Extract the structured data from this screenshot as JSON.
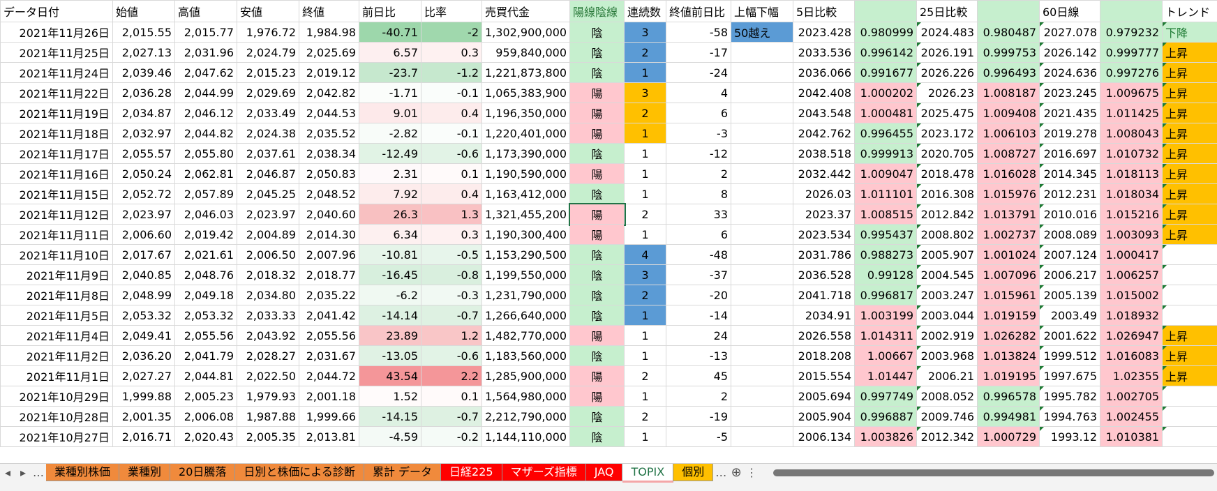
{
  "table": {
    "header": [
      "データ日付",
      "始値",
      "高値",
      "安値",
      "終値",
      "前日比",
      "比率",
      "売買代金",
      "陽線陰線",
      "連続数",
      "終値前日比",
      "上幅下幅",
      "5日比較",
      null,
      "25日比較",
      null,
      "60日線",
      null,
      "トレンド"
    ],
    "rows": [
      [
        "2021年11月26日",
        "2,015.55",
        "2,015.77",
        "1,976.72",
        "1,984.98",
        "-40.71",
        "-2",
        "1,302,900,000",
        "陰",
        "3",
        "-58",
        "50越え",
        "2023.428",
        "0.980999",
        "2024.483",
        "0.980487",
        "2027.078",
        "0.979232",
        "下降"
      ],
      [
        "2021年11月25日",
        "2,027.13",
        "2,031.96",
        "2,024.79",
        "2,025.69",
        "6.57",
        "0.3",
        "959,840,000",
        "陰",
        "2",
        "-17",
        null,
        "2033.536",
        "0.996142",
        "2026.191",
        "0.999753",
        "2026.142",
        "0.999777",
        "上昇"
      ],
      [
        "2021年11月24日",
        "2,039.46",
        "2,047.62",
        "2,015.23",
        "2,019.12",
        "-23.7",
        "-1.2",
        "1,221,873,800",
        "陰",
        "1",
        "-24",
        null,
        "2036.066",
        "0.991677",
        "2026.226",
        "0.996493",
        "2024.636",
        "0.997276",
        "上昇"
      ],
      [
        "2021年11月22日",
        "2,036.28",
        "2,044.99",
        "2,029.69",
        "2,042.82",
        "-1.71",
        "-0.1",
        "1,065,383,900",
        "陽",
        "3",
        "4",
        null,
        "2042.408",
        "1.000202",
        "2026.23",
        "1.008187",
        "2023.245",
        "1.009675",
        "上昇"
      ],
      [
        "2021年11月19日",
        "2,034.87",
        "2,046.12",
        "2,033.49",
        "2,044.53",
        "9.01",
        "0.4",
        "1,196,350,000",
        "陽",
        "2",
        "6",
        null,
        "2043.548",
        "1.000481",
        "2025.475",
        "1.009408",
        "2021.435",
        "1.011425",
        "上昇"
      ],
      [
        "2021年11月18日",
        "2,032.97",
        "2,044.82",
        "2,024.38",
        "2,035.52",
        "-2.82",
        "-0.1",
        "1,220,401,000",
        "陽",
        "1",
        "-3",
        null,
        "2042.762",
        "0.996455",
        "2023.172",
        "1.006103",
        "2019.278",
        "1.008043",
        "上昇"
      ],
      [
        "2021年11月17日",
        "2,055.57",
        "2,055.80",
        "2,037.61",
        "2,038.34",
        "-12.49",
        "-0.6",
        "1,173,390,000",
        "陰",
        "1",
        "-12",
        null,
        "2038.518",
        "0.999913",
        "2020.705",
        "1.008727",
        "2016.697",
        "1.010732",
        "上昇"
      ],
      [
        "2021年11月16日",
        "2,050.24",
        "2,062.81",
        "2,046.87",
        "2,050.83",
        "2.31",
        "0.1",
        "1,190,590,000",
        "陽",
        "1",
        "2",
        null,
        "2032.442",
        "1.009047",
        "2018.478",
        "1.016028",
        "2014.345",
        "1.018113",
        "上昇"
      ],
      [
        "2021年11月15日",
        "2,052.72",
        "2,057.89",
        "2,045.25",
        "2,048.52",
        "7.92",
        "0.4",
        "1,163,412,000",
        "陰",
        "1",
        "8",
        null,
        "2026.03",
        "1.011101",
        "2016.308",
        "1.015976",
        "2012.231",
        "1.018034",
        "上昇"
      ],
      [
        "2021年11月12日",
        "2,023.97",
        "2,046.03",
        "2,023.97",
        "2,040.60",
        "26.3",
        "1.3",
        "1,321,455,200",
        "陽",
        "2",
        "33",
        null,
        "2023.37",
        "1.008515",
        "2012.842",
        "1.013791",
        "2010.016",
        "1.015216",
        "上昇"
      ],
      [
        "2021年11月11日",
        "2,006.60",
        "2,019.42",
        "2,004.89",
        "2,014.30",
        "6.34",
        "0.3",
        "1,190,300,400",
        "陽",
        "1",
        "6",
        null,
        "2023.534",
        "0.995437",
        "2008.802",
        "1.002737",
        "2008.089",
        "1.003093",
        "上昇"
      ],
      [
        "2021年11月10日",
        "2,017.67",
        "2,021.61",
        "2,006.50",
        "2,007.96",
        "-10.81",
        "-0.5",
        "1,153,290,500",
        "陰",
        "4",
        "-48",
        null,
        "2031.786",
        "0.988273",
        "2005.907",
        "1.001024",
        "2007.124",
        "1.000417",
        null
      ],
      [
        "2021年11月9日",
        "2,040.85",
        "2,048.76",
        "2,018.32",
        "2,018.77",
        "-16.45",
        "-0.8",
        "1,199,550,000",
        "陰",
        "3",
        "-37",
        null,
        "2036.528",
        "0.99128",
        "2004.545",
        "1.007096",
        "2006.217",
        "1.006257",
        null
      ],
      [
        "2021年11月8日",
        "2,048.99",
        "2,049.18",
        "2,034.80",
        "2,035.22",
        "-6.2",
        "-0.3",
        "1,231,790,000",
        "陰",
        "2",
        "-20",
        null,
        "2041.718",
        "0.996817",
        "2003.247",
        "1.015961",
        "2005.139",
        "1.015002",
        null
      ],
      [
        "2021年11月5日",
        "2,053.32",
        "2,053.32",
        "2,033.33",
        "2,041.42",
        "-14.14",
        "-0.7",
        "1,266,640,000",
        "陰",
        "1",
        "-14",
        null,
        "2034.91",
        "1.003199",
        "2003.044",
        "1.019159",
        "2003.49",
        "1.018932",
        null
      ],
      [
        "2021年11月4日",
        "2,049.41",
        "2,055.56",
        "2,043.92",
        "2,055.56",
        "23.89",
        "1.2",
        "1,482,770,000",
        "陽",
        "1",
        "24",
        null,
        "2026.558",
        "1.014311",
        "2002.919",
        "1.026282",
        "2001.622",
        "1.026947",
        "上昇"
      ],
      [
        "2021年11月2日",
        "2,036.20",
        "2,041.79",
        "2,028.27",
        "2,031.67",
        "-13.05",
        "-0.6",
        "1,183,560,000",
        "陰",
        "1",
        "-13",
        null,
        "2018.208",
        "1.00667",
        "2003.968",
        "1.013824",
        "1999.512",
        "1.016083",
        "上昇"
      ],
      [
        "2021年11月1日",
        "2,027.27",
        "2,044.81",
        "2,022.50",
        "2,044.72",
        "43.54",
        "2.2",
        "1,285,900,000",
        "陽",
        "2",
        "45",
        null,
        "2015.554",
        "1.01447",
        "2006.21",
        "1.019195",
        "1997.675",
        "1.02355",
        "上昇"
      ],
      [
        "2021年10月29日",
        "1,999.88",
        "2,005.23",
        "1,979.93",
        "2,001.18",
        "1.52",
        "0.1",
        "1,564,980,000",
        "陽",
        "1",
        "2",
        null,
        "2005.694",
        "0.997749",
        "2008.052",
        "0.996578",
        "1995.782",
        "1.002705",
        null
      ],
      [
        "2021年10月28日",
        "2,001.35",
        "2,006.08",
        "1,987.88",
        "1,999.66",
        "-14.15",
        "-0.7",
        "2,212,790,000",
        "陰",
        "2",
        "-19",
        null,
        "2005.904",
        "0.996887",
        "2009.746",
        "0.994981",
        "1994.763",
        "1.002455",
        null
      ],
      [
        "2021年10月27日",
        "2,016.71",
        "2,020.43",
        "2,005.35",
        "2,013.81",
        "-4.59",
        "-0.2",
        "1,144,110,000",
        "陰",
        "1",
        "-5",
        null,
        "2006.134",
        "1.003826",
        "2012.342",
        "1.000729",
        "1993.12",
        "1.010381",
        null
      ]
    ],
    "range_fills": [
      "#5b9bd5",
      null,
      null,
      null,
      null,
      null,
      null,
      null,
      null,
      null,
      null,
      null,
      null,
      null,
      null,
      null,
      null,
      null,
      null,
      null,
      null
    ],
    "trend_fills": [
      "#c6efce",
      "#ffc000",
      "#ffc000",
      "#ffc000",
      "#ffc000",
      "#ffc000",
      "#ffc000",
      "#ffc000",
      "#ffc000",
      "#ffc000",
      "#ffc000",
      null,
      null,
      null,
      null,
      "#ffc000",
      "#ffc000",
      "#ffc000",
      null,
      null,
      null
    ],
    "selected_cell": {
      "row": 9,
      "col": 8
    }
  },
  "tabs": [
    {
      "label": "業種別株価",
      "color": "#f08a3c",
      "text_color": "#000000"
    },
    {
      "label": "業種別",
      "color": "#f08a3c",
      "text_color": "#000000"
    },
    {
      "label": "20日騰落",
      "color": "#f08a3c",
      "text_color": "#000000"
    },
    {
      "label": "日別と株価による診断",
      "color": "#f08a3c",
      "text_color": "#000000"
    },
    {
      "label": "累計 データ",
      "color": "#f08a3c",
      "text_color": "#000000"
    },
    {
      "label": "日経225",
      "color": "#ff0000",
      "text_color": "#ffffff"
    },
    {
      "label": "マザーズ指標",
      "color": "#ff0000",
      "text_color": "#ffffff"
    },
    {
      "label": "JAQ",
      "color": "#ff0000",
      "text_color": "#ffffff"
    },
    {
      "label": "TOPIX",
      "color": "#ffffff",
      "text_color": "#217346"
    },
    {
      "label": "個別",
      "color": "#ffc000",
      "text_color": "#000000"
    }
  ]
}
